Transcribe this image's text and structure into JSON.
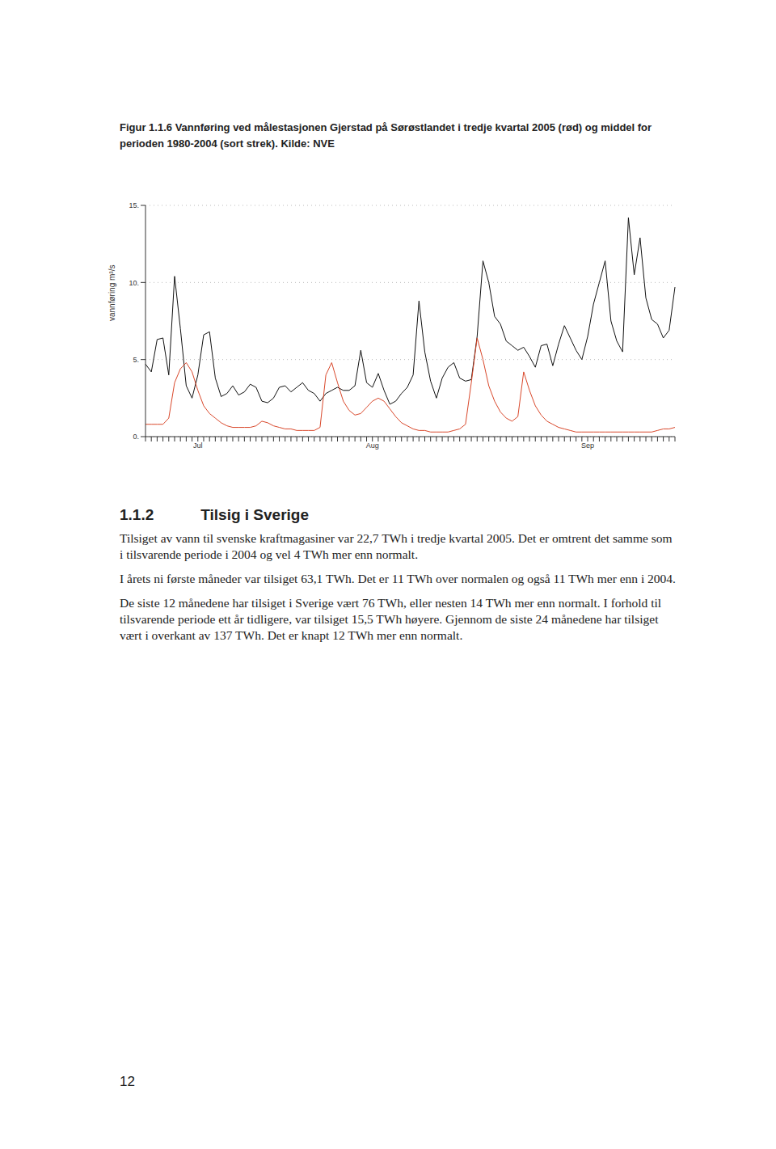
{
  "caption": "Figur 1.1.6 Vannføring ved målestasjonen Gjerstad på Sørøstlandet i tredje kvartal 2005 (rød) og middel for perioden 1980-2004 (sort strek). Kilde: NVE",
  "chart_data": {
    "type": "line",
    "y_label": "vannføring m³/s",
    "categories": [
      null,
      null,
      null,
      null,
      null,
      null,
      null,
      null,
      null,
      "Jul",
      null,
      null,
      null,
      null,
      null,
      null,
      null,
      null,
      null,
      null,
      null,
      null,
      null,
      null,
      null,
      null,
      null,
      null,
      null,
      null,
      null,
      null,
      null,
      null,
      null,
      null,
      null,
      null,
      null,
      "Aug",
      null,
      null,
      null,
      null,
      null,
      null,
      null,
      null,
      null,
      null,
      null,
      null,
      null,
      null,
      null,
      null,
      null,
      null,
      null,
      null,
      null,
      null,
      null,
      null,
      null,
      null,
      null,
      null,
      null,
      null,
      null,
      null,
      null,
      null,
      null,
      null,
      "Sep",
      null,
      null,
      null,
      null,
      null,
      null,
      null,
      null,
      null,
      null,
      null,
      null,
      null,
      null,
      null
    ],
    "series": [
      {
        "name": "1980-2004",
        "color": "#111111",
        "values": [
          4.7,
          4.2,
          6.3,
          6.4,
          4.0,
          10.4,
          7.0,
          3.3,
          2.5,
          4.0,
          6.6,
          6.8,
          3.8,
          2.6,
          2.8,
          3.3,
          2.7,
          2.9,
          3.4,
          3.2,
          2.3,
          2.2,
          2.5,
          3.2,
          3.3,
          2.9,
          3.2,
          3.5,
          3.0,
          2.8,
          2.3,
          2.8,
          3.0,
          3.2,
          3.0,
          3.0,
          3.3,
          5.6,
          3.5,
          3.2,
          4.1,
          3.0,
          2.1,
          2.3,
          2.8,
          3.2,
          4.0,
          8.8,
          5.5,
          3.6,
          2.5,
          3.8,
          4.5,
          4.8,
          3.8,
          3.6,
          3.7,
          6.5,
          11.4,
          10.0,
          7.8,
          7.3,
          6.2,
          5.9,
          5.6,
          5.8,
          5.2,
          4.5,
          5.9,
          6.0,
          4.6,
          6.0,
          7.2,
          6.4,
          5.6,
          5.0,
          6.5,
          8.6,
          10.0,
          11.4,
          7.5,
          6.2,
          5.5,
          14.2,
          10.5,
          12.9,
          9.0,
          7.6,
          7.3,
          6.4,
          6.9,
          9.7
        ]
      },
      {
        "name": "2005",
        "color": "#d9482b",
        "values": [
          0.8,
          0.8,
          0.8,
          0.8,
          1.2,
          3.5,
          4.4,
          4.8,
          4.2,
          3.0,
          2.0,
          1.5,
          1.2,
          0.9,
          0.7,
          0.6,
          0.6,
          0.6,
          0.6,
          0.7,
          1.0,
          0.9,
          0.7,
          0.6,
          0.5,
          0.5,
          0.4,
          0.4,
          0.4,
          0.4,
          0.6,
          4.0,
          4.8,
          3.5,
          2.3,
          1.7,
          1.4,
          1.5,
          1.9,
          2.3,
          2.5,
          2.3,
          1.8,
          1.3,
          0.9,
          0.7,
          0.5,
          0.4,
          0.4,
          0.3,
          0.3,
          0.3,
          0.3,
          0.4,
          0.5,
          0.8,
          3.5,
          6.4,
          5.0,
          3.3,
          2.3,
          1.6,
          1.2,
          1.0,
          1.3,
          4.2,
          3.0,
          2.0,
          1.4,
          1.0,
          0.8,
          0.6,
          0.5,
          0.4,
          0.3,
          0.3,
          0.3,
          0.3,
          0.3,
          0.3,
          0.3,
          0.3,
          0.3,
          0.3,
          0.3,
          0.3,
          0.3,
          0.3,
          0.4,
          0.5,
          0.5,
          0.6
        ]
      }
    ],
    "ylim": [
      0,
      15
    ],
    "yticks": [
      {
        "value": 0,
        "label": "0."
      },
      {
        "value": 5,
        "label": "5."
      },
      {
        "value": 10,
        "label": "10."
      },
      {
        "value": 15,
        "label": "15."
      }
    ],
    "grid": true
  },
  "section": {
    "number": "1.1.2",
    "title": "Tilsig i Sverige"
  },
  "paragraphs": [
    "Tilsiget av vann til svenske kraftmagasiner var 22,7 TWh i tredje kvartal 2005. Det er omtrent det samme som i tilsvarende periode i 2004 og vel 4 TWh mer enn normalt.",
    "I årets ni første måneder var tilsiget 63,1 TWh. Det er 11 TWh over normalen og også 11 TWh mer enn i 2004.",
    "De siste 12 månedene har tilsiget i Sverige vært 76 TWh, eller nesten 14 TWh mer enn normalt. I forhold til tilsvarende periode ett år tidligere, var tilsiget 15,5 TWh høyere. Gjennom de siste 24 månedene har tilsiget vært i overkant av 137 TWh. Det er knapt 12 TWh mer enn normalt."
  ],
  "page_number": "12"
}
